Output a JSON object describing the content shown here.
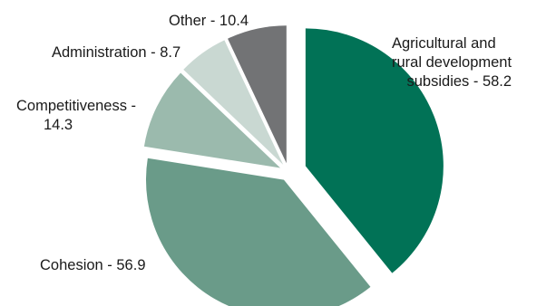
{
  "chart_data": {
    "type": "pie",
    "title": "",
    "unit": "",
    "start": "12 o'clock",
    "direction": "clockwise",
    "exploded": true,
    "slices": [
      {
        "label_lines": [
          "Agricultural and",
          "rural development",
          "subsidies - 58.2"
        ],
        "category": "Agricultural and rural development subsidies",
        "value": 58.2,
        "color": "#017256"
      },
      {
        "label_lines": [
          "Cohesion - 56.9"
        ],
        "category": "Cohesion",
        "value": 56.9,
        "color": "#6a9b89"
      },
      {
        "label_lines": [
          "Competitiveness -",
          "14.3"
        ],
        "category": "Competitiveness",
        "value": 14.3,
        "color": "#9bbaad"
      },
      {
        "label_lines": [
          "Administration - 8.7"
        ],
        "category": "Administration",
        "value": 8.7,
        "color": "#c9d8d2"
      },
      {
        "label_lines": [
          "Other - 10.4"
        ],
        "category": "Other",
        "value": 10.4,
        "color": "#727375"
      }
    ]
  }
}
